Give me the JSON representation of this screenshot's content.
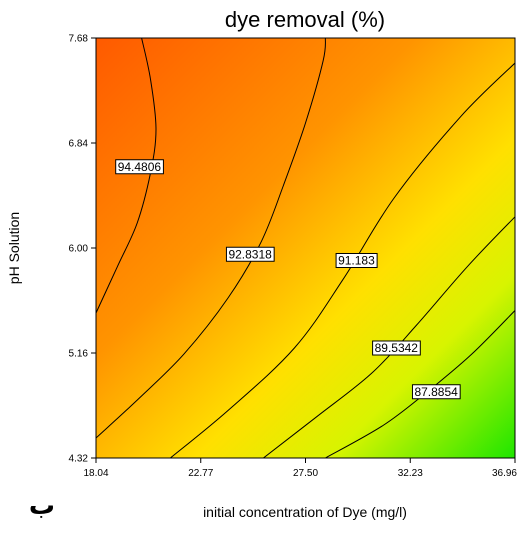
{
  "chart_data": {
    "type": "contour",
    "title": "dye removal (%)",
    "xlabel": "initial concentration of Dye (mg/l)",
    "ylabel": "pH Solution",
    "xlim": [
      18.04,
      36.96
    ],
    "ylim": [
      4.32,
      7.68
    ],
    "x_ticks": [
      "18.04",
      "22.77",
      "27.50",
      "32.23",
      "36.96"
    ],
    "y_ticks": [
      "4.32",
      "5.16",
      "6.00",
      "6.84",
      "7.68"
    ],
    "colormap": {
      "low": "#22ee00",
      "mid": "#ffee00",
      "high": "#ff5500"
    },
    "contours": [
      {
        "label": "94.4806",
        "label_pos": {
          "x": 20.0,
          "y": 6.65
        },
        "points": [
          [
            18.04,
            5.48
          ],
          [
            19.0,
            5.85
          ],
          [
            19.9,
            6.2
          ],
          [
            20.5,
            6.6
          ],
          [
            20.75,
            6.95
          ],
          [
            20.5,
            7.35
          ],
          [
            20.1,
            7.68
          ]
        ]
      },
      {
        "label": "92.8318",
        "label_pos": {
          "x": 25.0,
          "y": 5.95
        },
        "points": [
          [
            18.04,
            4.48
          ],
          [
            20.0,
            4.8
          ],
          [
            22.0,
            5.15
          ],
          [
            24.0,
            5.6
          ],
          [
            25.5,
            6.05
          ],
          [
            26.5,
            6.5
          ],
          [
            27.5,
            7.0
          ],
          [
            28.3,
            7.5
          ],
          [
            28.4,
            7.68
          ]
        ]
      },
      {
        "label": "91.183",
        "label_pos": {
          "x": 29.8,
          "y": 5.9
        },
        "points": [
          [
            21.4,
            4.32
          ],
          [
            24.0,
            4.7
          ],
          [
            27.0,
            5.2
          ],
          [
            29.2,
            5.75
          ],
          [
            31.5,
            6.4
          ],
          [
            34.5,
            7.05
          ],
          [
            36.96,
            7.48
          ]
        ]
      },
      {
        "label": "89.5342",
        "label_pos": {
          "x": 31.6,
          "y": 5.2
        },
        "points": [
          [
            25.6,
            4.32
          ],
          [
            28.0,
            4.65
          ],
          [
            30.5,
            5.0
          ],
          [
            32.5,
            5.38
          ],
          [
            34.8,
            5.85
          ],
          [
            36.96,
            6.25
          ]
        ]
      },
      {
        "label": "87.8854",
        "label_pos": {
          "x": 33.4,
          "y": 4.85
        },
        "points": [
          [
            28.4,
            4.32
          ],
          [
            31.0,
            4.58
          ],
          [
            33.0,
            4.85
          ],
          [
            35.0,
            5.15
          ],
          [
            36.96,
            5.5
          ]
        ]
      }
    ]
  },
  "panel_mark": "ب"
}
